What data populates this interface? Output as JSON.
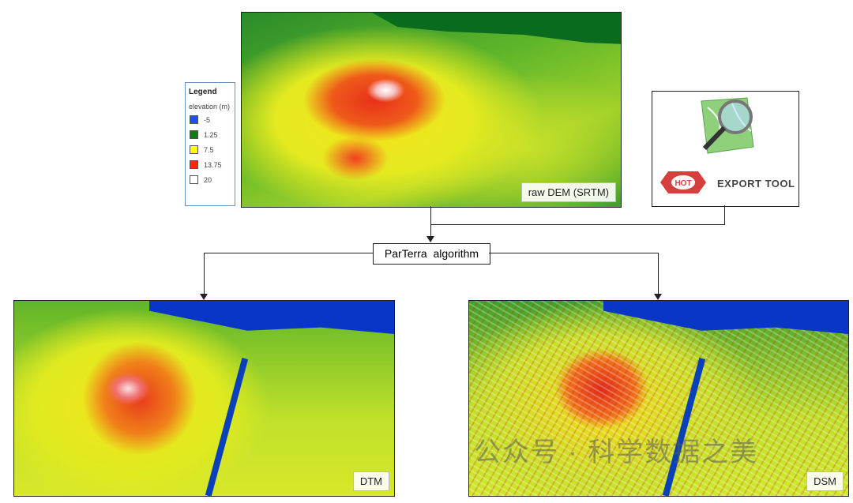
{
  "legend": {
    "title": "Legend",
    "subtitle": "elevation (m)",
    "items": [
      {
        "label": "-5",
        "color": "#1f4cff"
      },
      {
        "label": "1.25",
        "color": "#127a12"
      },
      {
        "label": "7.5",
        "color": "#ffff00"
      },
      {
        "label": "13.75",
        "color": "#ff2a00"
      },
      {
        "label": "20",
        "color": "#ffffff"
      }
    ]
  },
  "maps": {
    "raw": "raw DEM (SRTM)",
    "dtm": "DTM",
    "dsm": "DSM"
  },
  "hot": {
    "badge": "HOT",
    "text": "EXPORT TOOL"
  },
  "algorithm": "ParTerra  algorithm",
  "watermark": "公众号 · 科学数据之美"
}
